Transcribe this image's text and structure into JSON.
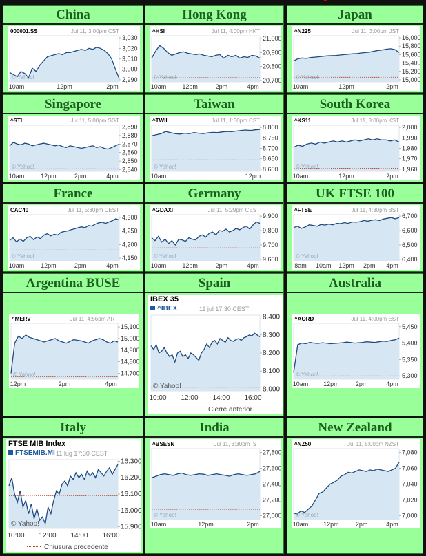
{
  "colors": {
    "panel": "#99ff99",
    "title": "#1b5e20",
    "line": "#1e4a80",
    "fill": "#d6e6f2",
    "prev": "#c04020"
  },
  "markets": [
    {
      "key": "china",
      "title": "China",
      "symbol": "000001.SS",
      "timestamp": "Jul 11, 3:00pm CST",
      "credit": "© Yahoo!",
      "xticks": [
        "10am",
        "12pm",
        "2pm"
      ],
      "yticks": [
        "3,030",
        "3,020",
        "3,010",
        "3,000",
        "2,990"
      ],
      "ylim": [
        2988,
        3032
      ],
      "prev_close": 3008,
      "series": [
        2997,
        2995,
        2993,
        2998,
        2996,
        2992,
        3001,
        2998,
        3004,
        3008,
        3012,
        3013,
        3014,
        3015,
        3014,
        3016,
        3016,
        3017,
        3018,
        3019,
        3018,
        3020,
        3019,
        3021,
        3020,
        3018,
        3015,
        3010,
        3000,
        2991
      ]
    },
    {
      "key": "hongkong",
      "title": "Hong Kong",
      "symbol": "^HSI",
      "timestamp": "Jul 11, 4:00pm HKT",
      "credit": "© Yahoo!",
      "xticks": [
        "10am",
        "12pm",
        "2pm",
        "4pm"
      ],
      "yticks": [
        "21,000",
        "20,900",
        "20,800",
        "20,700"
      ],
      "ylim": [
        20690,
        21020
      ],
      "prev_close": 20720,
      "series": [
        20860,
        20910,
        20950,
        20930,
        20900,
        20880,
        20890,
        20900,
        20905,
        20895,
        20890,
        20885,
        20890,
        20880,
        20875,
        20870,
        20880,
        20885,
        20860,
        20880,
        20870,
        20880,
        20860,
        20870,
        20865,
        20880,
        20875,
        20860
      ]
    },
    {
      "key": "japan",
      "title": "Japan",
      "symbol": "^N225",
      "timestamp": "Jul 11, 3:00pm JST",
      "credit": "© Yahoo!",
      "xticks": [
        "10am",
        "12pm",
        "2pm"
      ],
      "yticks": [
        "16,000",
        "15,800",
        "15,600",
        "15,400",
        "15,200",
        "15,000"
      ],
      "ylim": [
        14950,
        16050
      ],
      "prev_close": 15060,
      "series": [
        15450,
        15500,
        15520,
        15510,
        15530,
        15540,
        15550,
        15560,
        15570,
        15575,
        15580,
        15590,
        15600,
        15610,
        15620,
        15625,
        15640,
        15650,
        15660,
        15680,
        15700,
        15710,
        15730,
        15740,
        15720,
        15650
      ]
    },
    {
      "key": "singapore",
      "title": "Singapore",
      "symbol": "^STI",
      "timestamp": "Jul 11, 5:00pm SGT",
      "credit": "© Yahoo!",
      "xticks": [
        "10am",
        "12pm",
        "2pm",
        "4pm"
      ],
      "yticks": [
        "2,890",
        "2,880",
        "2,870",
        "2,860",
        "2,850",
        "2,840"
      ],
      "ylim": [
        2838,
        2892
      ],
      "prev_close": 2841,
      "series": [
        2868,
        2872,
        2870,
        2869,
        2871,
        2870,
        2868,
        2869,
        2870,
        2871,
        2870,
        2869,
        2868,
        2869,
        2867,
        2866,
        2868,
        2867,
        2866,
        2865,
        2866,
        2867,
        2868,
        2866,
        2867,
        2865,
        2864,
        2866,
        2868,
        2870
      ]
    },
    {
      "key": "taiwan",
      "title": "Taiwan",
      "symbol": "^TWII",
      "timestamp": "Jul 11, 1:30pm CST",
      "credit": "© Yahoo!",
      "xticks": [
        "10am",
        "12pm"
      ],
      "yticks": [
        "8,800",
        "8,750",
        "8,700",
        "8,650",
        "8,600"
      ],
      "ylim": [
        8590,
        8810
      ],
      "prev_close": 8645,
      "series": [
        8760,
        8765,
        8770,
        8780,
        8775,
        8770,
        8768,
        8772,
        8770,
        8775,
        8772,
        8770,
        8774,
        8776,
        8775,
        8778,
        8780,
        8779,
        8782,
        8785,
        8787,
        8785,
        8788,
        8790
      ]
    },
    {
      "key": "southkorea",
      "title": "South Korea",
      "symbol": "^KS11",
      "timestamp": "Jul 11, 3:00pm KST",
      "credit": "© Yahoo!",
      "xticks": [
        "10am",
        "12pm",
        "2pm"
      ],
      "yticks": [
        "2,000",
        "1,990",
        "1,980",
        "1,970",
        "1,960"
      ],
      "ylim": [
        1958,
        2002
      ],
      "prev_close": 1961,
      "series": [
        1981,
        1983,
        1982,
        1984,
        1985,
        1984,
        1986,
        1985,
        1986,
        1987,
        1986,
        1987,
        1986,
        1987,
        1988,
        1987,
        1988,
        1989,
        1988,
        1989,
        1988,
        1988,
        1987,
        1988,
        1986
      ]
    },
    {
      "key": "france",
      "title": "France",
      "symbol": "CAC40",
      "timestamp": "Jul 11, 5:30pm CEST",
      "credit": "© Yahoo!",
      "xticks": [
        "10am",
        "12pm",
        "2pm",
        "4pm"
      ],
      "yticks": [
        "4,300",
        "4,250",
        "4,200",
        "4,150"
      ],
      "ylim": [
        4140,
        4310
      ],
      "prev_close": 4180,
      "series": [
        4215,
        4225,
        4210,
        4220,
        4212,
        4225,
        4230,
        4218,
        4228,
        4222,
        4235,
        4240,
        4232,
        4238,
        4235,
        4245,
        4248,
        4250,
        4255,
        4258,
        4262,
        4265,
        4262,
        4270,
        4268,
        4275,
        4280,
        4282,
        4278,
        4283,
        4288,
        4295,
        4290
      ]
    },
    {
      "key": "germany",
      "title": "Germany",
      "symbol": "^GDAXI",
      "timestamp": "Jul 11, 5:29pm CEST",
      "credit": "© Yahoo!",
      "xticks": [
        "10am",
        "12pm",
        "2pm",
        "4pm"
      ],
      "yticks": [
        "9,900",
        "9,800",
        "9,700",
        "9,600"
      ],
      "ylim": [
        9590,
        9910
      ],
      "prev_close": 9680,
      "series": [
        9750,
        9730,
        9760,
        9720,
        9740,
        9710,
        9730,
        9700,
        9740,
        9735,
        9725,
        9750,
        9740,
        9735,
        9760,
        9770,
        9755,
        9780,
        9790,
        9770,
        9800,
        9795,
        9810,
        9790,
        9800,
        9815,
        9805,
        9820,
        9830,
        9810,
        9840,
        9860,
        9850
      ]
    },
    {
      "key": "uk",
      "title": "UK FTSE 100",
      "symbol": "^FTSE",
      "timestamp": "Jul 11, 4:30pm BST",
      "credit": "© Yahoo!",
      "xticks": [
        "8am",
        "10am",
        "12pm",
        "2pm",
        "4pm"
      ],
      "yticks": [
        "6,700",
        "6,600",
        "6,500",
        "6,400"
      ],
      "ylim": [
        6390,
        6710
      ],
      "prev_close": 6540,
      "series": [
        6620,
        6630,
        6615,
        6625,
        6640,
        6635,
        6630,
        6642,
        6638,
        6645,
        6640,
        6650,
        6648,
        6655,
        6650,
        6660,
        6658,
        6662,
        6670,
        6665,
        6672,
        6675,
        6670,
        6680,
        6685,
        6690,
        6682,
        6690
      ]
    },
    {
      "key": "argentina",
      "title": "Argentina BUSE",
      "symbol": "^MERV",
      "timestamp": "Jul 11, 4:56pm ART",
      "credit": "© Yahoo!",
      "xticks": [
        "12pm",
        "2pm",
        "4pm"
      ],
      "yticks": [
        "15,100",
        "15,000",
        "14,900",
        "14,800",
        "14,700"
      ],
      "ylim": [
        14650,
        15130
      ],
      "prev_close": 14670,
      "series": [
        14700,
        14960,
        15020,
        15000,
        15030,
        15010,
        15000,
        14990,
        14980,
        14970,
        14980,
        14990,
        15000,
        14980,
        14970,
        14960,
        14975,
        14990,
        14985,
        14980,
        14970,
        14960,
        14980,
        14990,
        15000,
        14990,
        14970,
        14960,
        14980,
        14970
      ]
    },
    {
      "key": "spain",
      "title": "Spain",
      "chart_title": "IBEX 35",
      "symbol": "^IBEX",
      "timestamp": "11 jul 17:30 CEST",
      "credit": "© Yahoo!",
      "legend": "Cierre anterior",
      "xticks": [
        "10:00",
        "12:00",
        "14:00",
        "16:00"
      ],
      "yticks": [
        "8.400",
        "8.300",
        "8.200",
        "8.100",
        "8.000"
      ],
      "ylim": [
        7990,
        8410
      ],
      "prev_close": 8010,
      "series": [
        8240,
        8220,
        8245,
        8200,
        8210,
        8230,
        8200,
        8180,
        8190,
        8150,
        8200,
        8210,
        8180,
        8190,
        8170,
        8200,
        8190,
        8175,
        8160,
        8200,
        8220,
        8250,
        8230,
        8260,
        8270,
        8250,
        8280,
        8270,
        8260,
        8285,
        8270,
        8265,
        8275,
        8280,
        8270,
        8285,
        8290,
        8300,
        8295,
        8310,
        8300,
        8290
      ]
    },
    {
      "key": "australia",
      "title": "Australia",
      "symbol": "^AORD",
      "timestamp": "Jul 11, 4:00pm EST",
      "credit": "© Yahoo!",
      "xticks": [
        "10am",
        "12pm",
        "2pm",
        "4pm"
      ],
      "yticks": [
        "5,450",
        "5,400",
        "5,350",
        "5,300"
      ],
      "ylim": [
        5290,
        5460
      ],
      "prev_close": 5300,
      "series": [
        5310,
        5395,
        5400,
        5398,
        5402,
        5400,
        5399,
        5401,
        5400,
        5398,
        5399,
        5400,
        5401,
        5403,
        5402,
        5400,
        5401,
        5402,
        5404,
        5403,
        5402,
        5404,
        5406,
        5405,
        5408,
        5410,
        5415
      ]
    },
    {
      "key": "italy",
      "title": "Italy",
      "chart_title": "FTSE MIB Index",
      "symbol": "FTSEMIB.MI",
      "timestamp": "11 lug 17:30 CEST",
      "credit": "© Yahoo!",
      "legend": "Chiusura precedente",
      "xticks": [
        "10:00",
        "12:00",
        "14:00",
        "16:00"
      ],
      "yticks": [
        "16.300",
        "16.200",
        "16.100",
        "16.000",
        "15.900"
      ],
      "ylim": [
        15890,
        16310
      ],
      "prev_close": 16090,
      "series": [
        16150,
        16200,
        16100,
        16050,
        16120,
        16020,
        16060,
        15980,
        16040,
        15950,
        16010,
        15940,
        15960,
        15920,
        16020,
        15980,
        16060,
        16120,
        16100,
        16160,
        16180,
        16150,
        16210,
        16190,
        16230,
        16200,
        16220,
        16190,
        16240,
        16210,
        16230,
        16200,
        16250,
        16230,
        16210,
        16240,
        16260,
        16220,
        16250,
        16280
      ]
    },
    {
      "key": "india",
      "title": "India",
      "symbol": "^BSESN",
      "timestamp": "Jul 11, 3:30pm IST",
      "credit": "© Yahoo!",
      "xticks": [
        "10am",
        "12pm",
        "2pm"
      ],
      "yticks": [
        "27,800",
        "27,600",
        "27,400",
        "27,200",
        "27,000"
      ],
      "ylim": [
        26950,
        27850
      ],
      "prev_close": 27080,
      "series": [
        27480,
        27500,
        27520,
        27530,
        27520,
        27510,
        27530,
        27540,
        27520,
        27510,
        27520,
        27530,
        27525,
        27510,
        27520,
        27530,
        27520,
        27510,
        27500,
        27520,
        27530,
        27520,
        27510,
        27520,
        27530,
        27560
      ]
    },
    {
      "key": "newzealand",
      "title": "New Zealand",
      "symbol": "^NZ50",
      "timestamp": "Jul 11, 5:00pm NZST",
      "credit": "© Yahoo!",
      "xticks": [
        "10am",
        "12pm",
        "2pm",
        "4pm"
      ],
      "yticks": [
        "7,080",
        "7,060",
        "7,040",
        "7,020",
        "7,000"
      ],
      "ylim": [
        6995,
        7085
      ],
      "prev_close": 6998,
      "series": [
        7003,
        7002,
        7006,
        7004,
        7008,
        7012,
        7020,
        7028,
        7030,
        7035,
        7040,
        7042,
        7045,
        7050,
        7052,
        7055,
        7054,
        7056,
        7058,
        7057,
        7056,
        7058,
        7057,
        7059,
        7058,
        7057,
        7056,
        7058,
        7060,
        7068
      ]
    }
  ]
}
